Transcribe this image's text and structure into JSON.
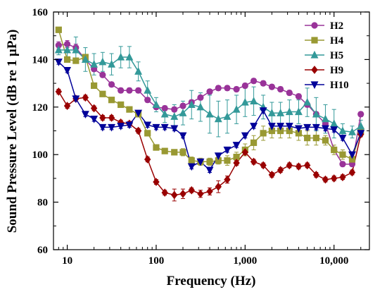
{
  "chart_data": {
    "type": "line",
    "xlabel": "Frequency (Hz)",
    "ylabel": "Sound Pressure Level (dB re 1 µPa)",
    "x_scale": "log",
    "xlim": [
      7,
      25000
    ],
    "ylim": [
      60,
      160
    ],
    "x_ticks": [
      10,
      100,
      1000,
      10000
    ],
    "x_tick_labels": [
      "10",
      "100",
      "1,000",
      "10,000"
    ],
    "y_ticks": [
      60,
      80,
      100,
      120,
      140,
      160
    ],
    "y_tick_labels": [
      "60",
      "80",
      "100",
      "120",
      "140",
      "160"
    ],
    "grid": false,
    "legend_position": "top-right",
    "x": [
      8,
      10,
      12.5,
      16,
      20,
      25,
      31.5,
      40,
      50,
      63,
      80,
      100,
      125,
      160,
      200,
      250,
      315,
      400,
      500,
      630,
      800,
      1000,
      1250,
      1600,
      2000,
      2500,
      3150,
      4000,
      5000,
      6300,
      8000,
      10000,
      12500,
      16000,
      20000
    ],
    "series": [
      {
        "name": "H2",
        "color": "#993399",
        "marker": "circle",
        "values": [
          146,
          146.5,
          145,
          140,
          136,
          133.5,
          129.5,
          127,
          127,
          127,
          123,
          120,
          119.5,
          119,
          120.5,
          122,
          124,
          126.5,
          128,
          128,
          127.5,
          129,
          131,
          130,
          128.5,
          127.5,
          126,
          124.5,
          121,
          117,
          113,
          102,
          96,
          96,
          117
        ],
        "errors": [
          1.5,
          1.5,
          1.5,
          1,
          1,
          1,
          1,
          1,
          1,
          1,
          1,
          1,
          1,
          1,
          1,
          1,
          1,
          1,
          1,
          1,
          1,
          1,
          1,
          1,
          1,
          1,
          1,
          1,
          1,
          1,
          1,
          1,
          1,
          1,
          1
        ]
      },
      {
        "name": "H4",
        "color": "#999933",
        "marker": "square",
        "values": [
          152.5,
          140,
          139.5,
          141,
          129,
          125.5,
          123,
          121,
          119,
          117,
          109,
          103,
          101.5,
          101,
          101,
          97.5,
          97,
          97,
          97.5,
          97.5,
          99,
          102,
          105,
          109,
          110,
          110,
          110,
          109,
          107,
          107,
          106,
          102,
          100,
          98,
          110
        ],
        "errors": [
          1,
          1,
          1,
          1,
          1,
          1,
          1,
          1,
          1,
          1,
          1,
          1,
          1,
          1,
          1.5,
          1.5,
          1.5,
          1.5,
          1.5,
          2,
          2,
          2.5,
          3,
          3,
          3,
          3,
          3,
          3,
          3,
          3,
          2,
          2,
          2,
          1.5,
          1.5
        ]
      },
      {
        "name": "H5",
        "color": "#339999",
        "marker": "triangle",
        "values": [
          144,
          144,
          144,
          140,
          138,
          139,
          138,
          141,
          141,
          135,
          127,
          121,
          117,
          116,
          117.5,
          121,
          120,
          117,
          115,
          116,
          119,
          122,
          122.5,
          120,
          117.5,
          117.5,
          118,
          118,
          122,
          117,
          115,
          113,
          110,
          109.5,
          112
        ],
        "errors": [
          2,
          3,
          5.5,
          5,
          4.5,
          4,
          4.5,
          4.5,
          4.5,
          4,
          4,
          3,
          3.5,
          5,
          5,
          6,
          6,
          8,
          7.5,
          7,
          6,
          6,
          6,
          5,
          4.5,
          4.5,
          5,
          5,
          6,
          7,
          6,
          6,
          3,
          2.5,
          2.5
        ]
      },
      {
        "name": "H9",
        "color": "#990000",
        "marker": "diamond",
        "values": [
          126.5,
          120.5,
          123.5,
          124,
          119.5,
          115.5,
          115.5,
          113.5,
          113,
          110,
          98,
          88.5,
          84,
          83,
          83.5,
          85,
          83.5,
          84.5,
          86.5,
          89.5,
          96.5,
          101,
          97,
          95.5,
          91.5,
          93.5,
          95.5,
          95,
          95.5,
          91.5,
          89.5,
          90,
          90.5,
          92.5,
          108.5
        ],
        "errors": [
          1,
          1,
          1,
          1,
          1,
          1,
          1,
          1,
          1,
          1,
          1,
          1,
          1,
          2.5,
          2,
          1,
          1.5,
          1.5,
          2.5,
          1.5,
          1,
          1,
          1,
          1,
          1,
          1,
          1,
          1,
          1,
          1,
          1,
          1,
          1,
          1,
          1
        ]
      },
      {
        "name": "H10",
        "color": "#000099",
        "marker": "triangle-down",
        "values": [
          139,
          135.5,
          123.5,
          117,
          115,
          111.5,
          111.5,
          112,
          112.5,
          117.5,
          112.5,
          111.5,
          111.5,
          111,
          108,
          95,
          97,
          93.5,
          99.5,
          102,
          104,
          108,
          112,
          118.5,
          112,
          112,
          112,
          111,
          111.5,
          111.5,
          111,
          110.5,
          107,
          100,
          109
        ],
        "errors": [
          1,
          1,
          1,
          1,
          1,
          1,
          1,
          1,
          1,
          1,
          1,
          1,
          1,
          1,
          1,
          1,
          1,
          1,
          1,
          1,
          1,
          1,
          1,
          1,
          1,
          1,
          1,
          1,
          1,
          1,
          1,
          1,
          1,
          1,
          1
        ]
      }
    ]
  }
}
